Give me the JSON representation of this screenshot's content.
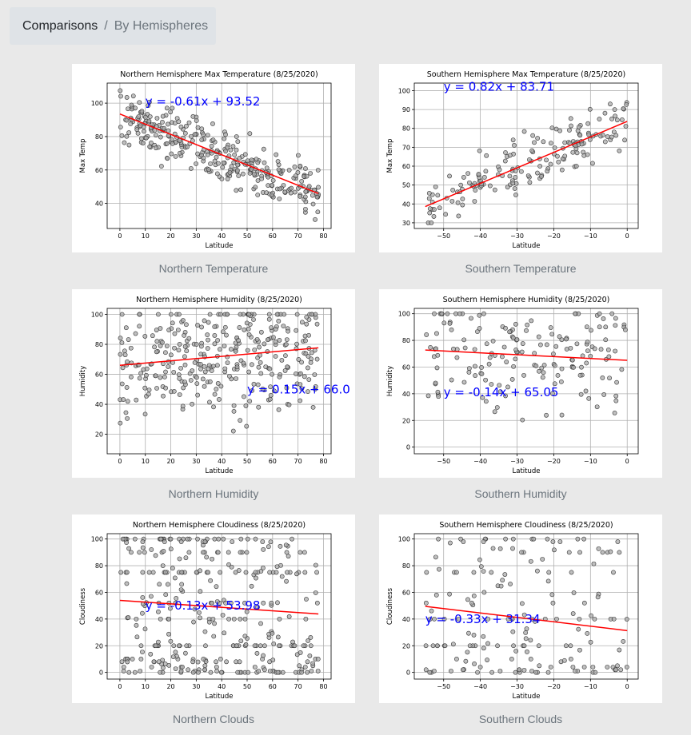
{
  "breadcrumb": {
    "parent": "Comparisons",
    "separator": "/",
    "current": "By Hemispheres"
  },
  "colors": {
    "regression": "#ff0000",
    "equation": "#0000ff",
    "points": "#a9a9a9",
    "point_edge": "#333333"
  },
  "chart_data": [
    {
      "id": "north-temp",
      "type": "scatter",
      "title": "Northern Hemisphere Max Temperature (8/25/2020)",
      "xlabel": "Latitude",
      "ylabel": "Max Temp",
      "xlim": [
        -5,
        83
      ],
      "ylim": [
        25,
        112
      ],
      "xticks": [
        0,
        10,
        20,
        30,
        40,
        50,
        60,
        70,
        80
      ],
      "yticks": [
        40,
        60,
        80,
        100
      ],
      "regression": {
        "slope": -0.61,
        "intercept": 93.52,
        "x_range": [
          0,
          78
        ]
      },
      "equation": "y = -0.61x + 93.52",
      "equation_pos": [
        10,
        101
      ],
      "caption": "Northern Temperature"
    },
    {
      "id": "south-temp",
      "type": "scatter",
      "title": "Southern Hemisphere Max Temperature (8/25/2020)",
      "xlabel": "Latitude",
      "ylabel": "Max Temp",
      "xlim": [
        -58,
        3
      ],
      "ylim": [
        27,
        104
      ],
      "xticks": [
        -50,
        -40,
        -30,
        -20,
        -10,
        0
      ],
      "yticks": [
        30,
        40,
        50,
        60,
        70,
        80,
        90,
        100
      ],
      "regression": {
        "slope": 0.82,
        "intercept": 83.71,
        "x_range": [
          -55,
          0
        ]
      },
      "equation": "y = 0.82x + 83.71",
      "equation_pos": [
        -50,
        102
      ],
      "caption": "Southern Temperature"
    },
    {
      "id": "north-hum",
      "type": "scatter",
      "title": "Northern Hemisphere Humidity (8/25/2020)",
      "xlabel": "Latitude",
      "ylabel": "Humidity",
      "xlim": [
        -5,
        83
      ],
      "ylim": [
        7,
        104
      ],
      "xticks": [
        0,
        10,
        20,
        30,
        40,
        50,
        60,
        70,
        80
      ],
      "yticks": [
        20,
        40,
        60,
        80,
        100
      ],
      "regression": {
        "slope": 0.15,
        "intercept": 66.0,
        "x_range": [
          0,
          78
        ]
      },
      "equation": "y = 0.15x + 66.0",
      "equation_pos": [
        50,
        50
      ],
      "caption": "Northern Humidity"
    },
    {
      "id": "south-hum",
      "type": "scatter",
      "title": "Southern Hemisphere Humidity (8/25/2020)",
      "xlabel": "Latitude",
      "ylabel": "Humidity",
      "xlim": [
        -58,
        3
      ],
      "ylim": [
        -5,
        104
      ],
      "xticks": [
        -50,
        -40,
        -30,
        -20,
        -10,
        0
      ],
      "yticks": [
        0,
        20,
        40,
        60,
        80,
        100
      ],
      "regression": {
        "slope": -0.14,
        "intercept": 65.05,
        "x_range": [
          -55,
          0
        ]
      },
      "equation": "y = -0.14x + 65.05",
      "equation_pos": [
        -50,
        41
      ],
      "caption": "Southern Humidity"
    },
    {
      "id": "north-cloud",
      "type": "scatter",
      "title": "Northern Hemisphere Cloudiness (8/25/2020)",
      "xlabel": "Latitude",
      "ylabel": "Cloudiness",
      "xlim": [
        -5,
        83
      ],
      "ylim": [
        -5,
        104
      ],
      "xticks": [
        0,
        10,
        20,
        30,
        40,
        50,
        60,
        70,
        80
      ],
      "yticks": [
        0,
        20,
        40,
        60,
        80,
        100
      ],
      "regression": {
        "slope": -0.13,
        "intercept": 53.98,
        "x_range": [
          0,
          78
        ]
      },
      "equation": "y = -0.13x + 53.98",
      "equation_pos": [
        10,
        50
      ],
      "caption": "Northern Clouds"
    },
    {
      "id": "south-cloud",
      "type": "scatter",
      "title": "Southern Hemisphere Cloudiness (8/25/2020)",
      "xlabel": "Latitude",
      "ylabel": "Cloudiness",
      "xlim": [
        -58,
        3
      ],
      "ylim": [
        -5,
        104
      ],
      "xticks": [
        -50,
        -40,
        -30,
        -20,
        -10,
        0
      ],
      "yticks": [
        0,
        20,
        40,
        60,
        80,
        100
      ],
      "regression": {
        "slope": -0.33,
        "intercept": 31.34,
        "x_range": [
          -55,
          0
        ]
      },
      "equation": "y = -0.33x + 31.34",
      "equation_pos": [
        -55,
        40
      ],
      "caption": "Southern Clouds"
    }
  ]
}
